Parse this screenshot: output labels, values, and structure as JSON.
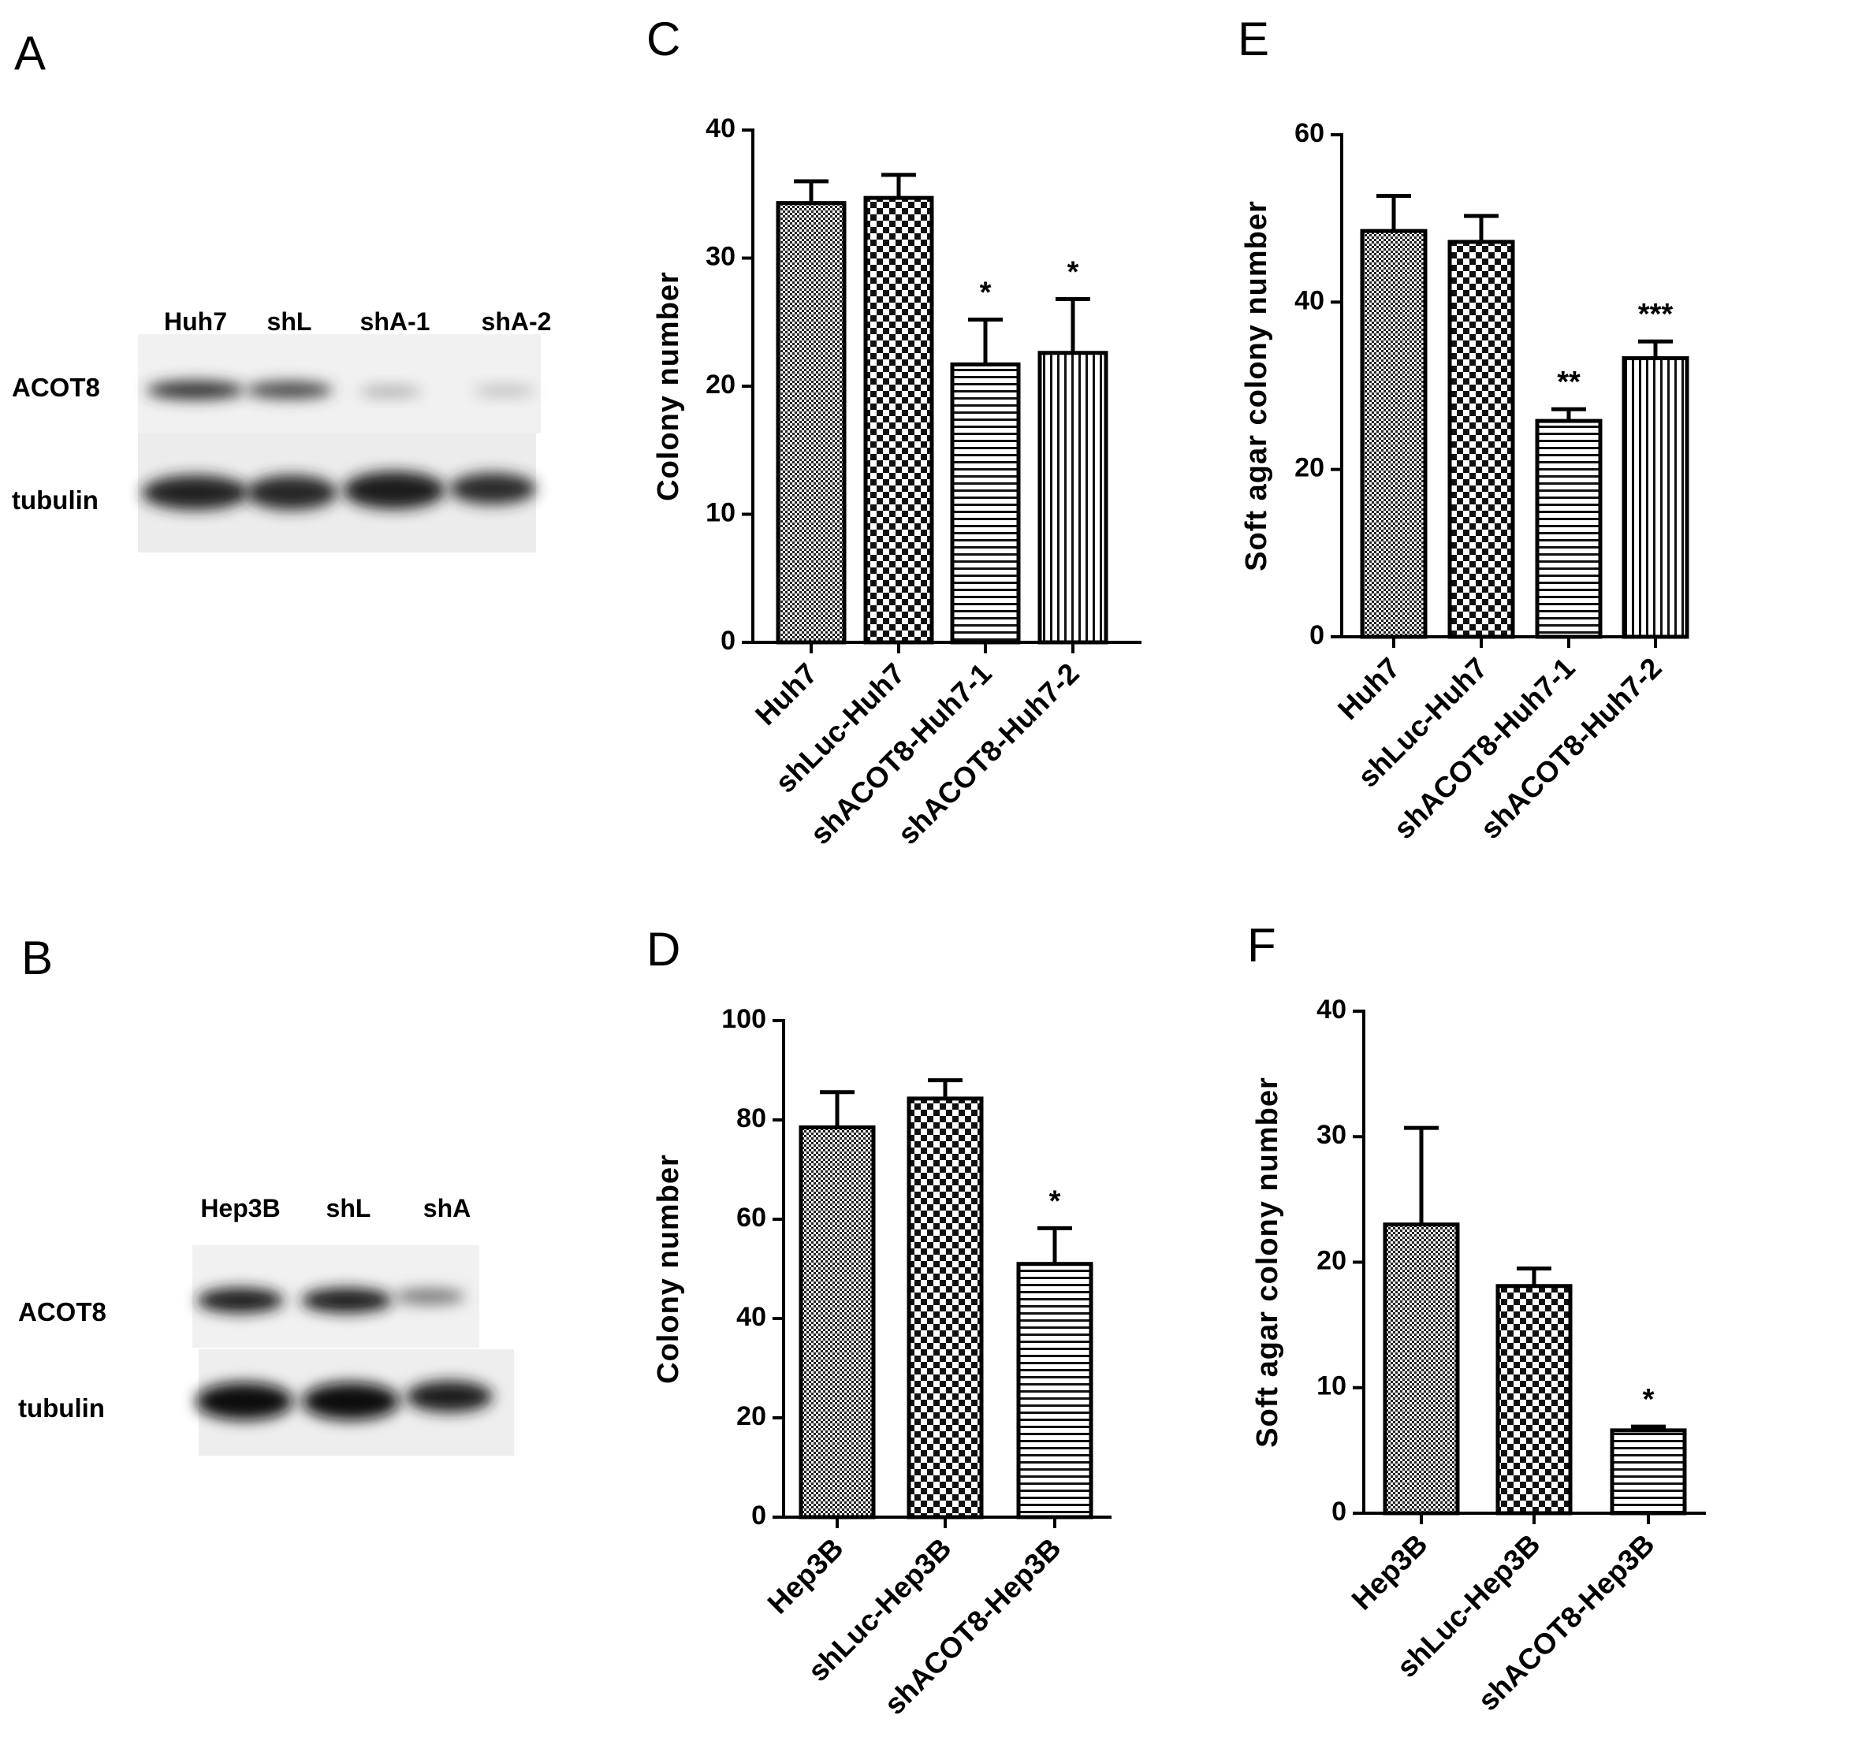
{
  "blots": [
    {
      "panel": "A",
      "lanes": [
        "Huh7",
        "shL",
        "shA-1",
        "shA-2"
      ],
      "rows": [
        "ACOT8",
        "tubulin"
      ]
    },
    {
      "panel": "B",
      "lanes": [
        "Hep3B",
        "shL",
        "shA"
      ],
      "rows": [
        "ACOT8",
        "tubulin"
      ]
    }
  ],
  "chart_data": [
    {
      "type": "bar",
      "panel": "C",
      "ylabel": "Colony number",
      "categories": [
        "Huh7",
        "shLuc-Huh7",
        "shACOT8-Huh7-1",
        "shACOT8-Huh7-2"
      ],
      "values": [
        34.3,
        34.7,
        21.7,
        22.6
      ],
      "errors": [
        1.7,
        1.8,
        3.5,
        4.2
      ],
      "annotations": [
        null,
        null,
        "*",
        "*"
      ],
      "patterns": [
        "dots",
        "checker",
        "hlines",
        "vlines"
      ],
      "ylim": [
        0,
        40
      ],
      "yticks": [
        0,
        10,
        20,
        30,
        40
      ]
    },
    {
      "type": "bar",
      "panel": "D",
      "ylabel": "Colony number",
      "categories": [
        "Hep3B",
        "shLuc-Hep3B",
        "shACOT8-Hep3B"
      ],
      "values": [
        78.5,
        84.3,
        51
      ],
      "errors": [
        7.1,
        3.7,
        7.2
      ],
      "annotations": [
        null,
        null,
        "*"
      ],
      "patterns": [
        "dots",
        "checker",
        "hlines"
      ],
      "ylim": [
        0,
        100
      ],
      "yticks": [
        0,
        20,
        40,
        60,
        80,
        100
      ]
    },
    {
      "type": "bar",
      "panel": "E",
      "ylabel": "Soft agar colony number",
      "categories": [
        "Huh7",
        "shLuc-Huh7",
        "shACOT8-Huh7-1",
        "shACOT8-Huh7-2"
      ],
      "values": [
        48.5,
        47.2,
        25.8,
        33.3
      ],
      "errors": [
        4.2,
        3.1,
        1.4,
        2.0
      ],
      "annotations": [
        null,
        null,
        "**",
        "***"
      ],
      "patterns": [
        "dots",
        "checker",
        "hlines",
        "vlines"
      ],
      "ylim": [
        0,
        60
      ],
      "yticks": [
        0,
        20,
        40,
        60
      ]
    },
    {
      "type": "bar",
      "panel": "F",
      "ylabel": "Soft agar colony number",
      "categories": [
        "Hep3B",
        "shLuc-Hep3B",
        "shACOT8-Hep3B"
      ],
      "values": [
        23,
        18.1,
        6.6
      ],
      "errors": [
        7.7,
        1.4,
        0.3
      ],
      "annotations": [
        null,
        null,
        "*"
      ],
      "patterns": [
        "dots",
        "checker",
        "hlines"
      ],
      "ylim": [
        0,
        40
      ],
      "yticks": [
        0,
        10,
        20,
        30,
        40
      ]
    }
  ]
}
